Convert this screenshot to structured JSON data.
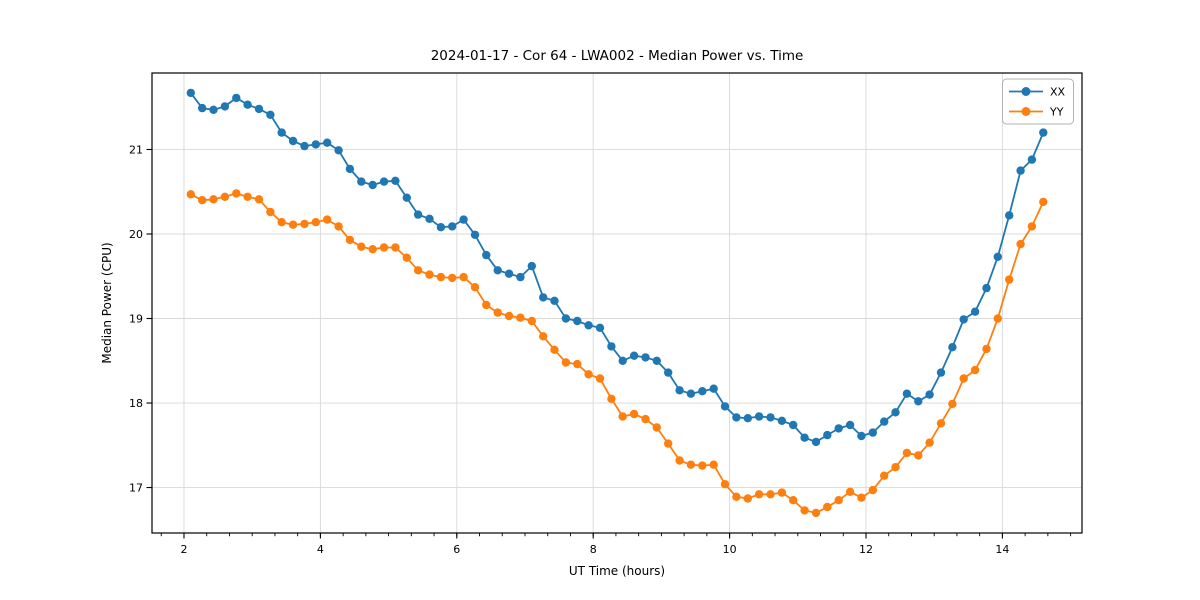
{
  "figure": {
    "background": "#ffffff",
    "title": "2024-01-17 - Cor 64 - LWA002 - Median Power vs. Time"
  },
  "chart_data": {
    "type": "line",
    "title": "2024-01-17 - Cor 64 - LWA002 - Median Power vs. Time",
    "xlabel": "UT Time (hours)",
    "ylabel": "Median Power (CPU)",
    "x": [
      2.1,
      2.267,
      2.433,
      2.6,
      2.767,
      2.933,
      3.1,
      3.267,
      3.433,
      3.6,
      3.767,
      3.933,
      4.1,
      4.267,
      4.433,
      4.6,
      4.767,
      4.933,
      5.1,
      5.267,
      5.433,
      5.6,
      5.767,
      5.933,
      6.1,
      6.267,
      6.433,
      6.6,
      6.767,
      6.933,
      7.1,
      7.267,
      7.433,
      7.6,
      7.767,
      7.933,
      8.1,
      8.267,
      8.433,
      8.6,
      8.767,
      8.933,
      9.1,
      9.267,
      9.433,
      9.6,
      9.767,
      9.933,
      10.1,
      10.267,
      10.433,
      10.6,
      10.767,
      10.933,
      11.1,
      11.267,
      11.433,
      11.6,
      11.767,
      11.933,
      12.1,
      12.267,
      12.433,
      12.6,
      12.767,
      12.933,
      13.1,
      13.267,
      13.433,
      13.6,
      13.767,
      13.933,
      14.1,
      14.267,
      14.433,
      14.6
    ],
    "series": [
      {
        "name": "XX",
        "color": "#1f77b4",
        "values": [
          21.67,
          21.49,
          21.47,
          21.51,
          21.61,
          21.53,
          21.48,
          21.41,
          21.2,
          21.1,
          21.04,
          21.06,
          21.08,
          20.99,
          20.77,
          20.62,
          20.58,
          20.62,
          20.63,
          20.43,
          20.23,
          20.18,
          20.08,
          20.09,
          20.17,
          19.99,
          19.75,
          19.57,
          19.53,
          19.49,
          19.62,
          19.25,
          19.21,
          19.0,
          18.97,
          18.92,
          18.89,
          18.67,
          18.5,
          18.56,
          18.54,
          18.5,
          18.36,
          18.15,
          18.11,
          18.14,
          18.17,
          17.96,
          17.83,
          17.82,
          17.84,
          17.83,
          17.79,
          17.74,
          17.59,
          17.54,
          17.62,
          17.7,
          17.74,
          17.61,
          17.65,
          17.78,
          17.89,
          18.11,
          18.02,
          18.1,
          18.36,
          18.66,
          18.99,
          19.08,
          19.36,
          19.73,
          20.22,
          20.75,
          20.88,
          21.2
        ]
      },
      {
        "name": "YY",
        "color": "#ff7f0e",
        "values": [
          20.47,
          20.4,
          20.41,
          20.44,
          20.48,
          20.44,
          20.41,
          20.26,
          20.14,
          20.11,
          20.12,
          20.14,
          20.17,
          20.09,
          19.93,
          19.85,
          19.82,
          19.84,
          19.84,
          19.72,
          19.57,
          19.52,
          19.49,
          19.48,
          19.49,
          19.37,
          19.16,
          19.07,
          19.03,
          19.01,
          18.97,
          18.79,
          18.63,
          18.48,
          18.46,
          18.34,
          18.29,
          18.05,
          17.84,
          17.87,
          17.81,
          17.71,
          17.52,
          17.32,
          17.27,
          17.26,
          17.27,
          17.04,
          16.89,
          16.87,
          16.92,
          16.92,
          16.94,
          16.85,
          16.73,
          16.7,
          16.77,
          16.85,
          16.95,
          16.88,
          16.97,
          17.14,
          17.24,
          17.41,
          17.38,
          17.53,
          17.76,
          17.99,
          18.29,
          18.39,
          18.64,
          19.0,
          19.46,
          19.88,
          20.09,
          20.38
        ]
      }
    ],
    "xlim": [
      1.531,
      15.167
    ],
    "ylim": [
      16.462,
      21.905
    ],
    "x_ticks": [
      2,
      4,
      6,
      8,
      10,
      12,
      14
    ],
    "x_minor_tick_step": 0.33333,
    "y_ticks": [
      17,
      18,
      19,
      20,
      21
    ],
    "grid": true,
    "legend": {
      "position": "upper right",
      "entries": [
        "XX",
        "YY"
      ]
    },
    "marker": "circle",
    "grid_color": "#d8d8d8",
    "spine_color": "#000000"
  }
}
